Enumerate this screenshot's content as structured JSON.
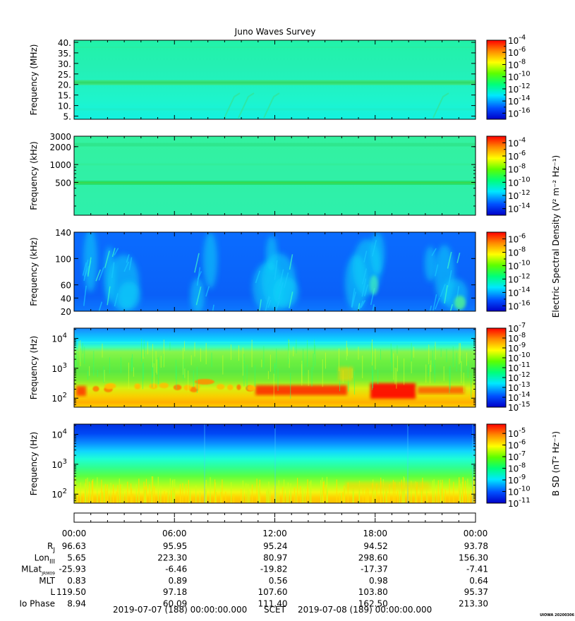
{
  "chart_data": {
    "type": "heatmap",
    "title": "Juno Waves Survey",
    "panels": [
      {
        "kind": "e1",
        "ylabel": "Frequency (MHz)",
        "ylim": [
          3.5,
          41
        ],
        "yscale": "linear",
        "yticks": [
          {
            "v": 40,
            "t": "40."
          },
          {
            "v": 35,
            "t": "35."
          },
          {
            "v": 30,
            "t": "30."
          },
          {
            "v": 25,
            "t": "25."
          },
          {
            "v": 20,
            "t": "20."
          },
          {
            "v": 15,
            "t": "15."
          },
          {
            "v": 10,
            "t": "10."
          },
          {
            "v": 5,
            "t": "5."
          }
        ],
        "colorbar": {
          "exp_ticks": [
            "-4",
            "-6",
            "-8",
            "-10",
            "-12",
            "-14",
            "-16"
          ],
          "range": [
            -17,
            -4
          ],
          "label": ""
        }
      },
      {
        "kind": "e2",
        "ylabel": "Frequency (kHz)",
        "ylim": [
          140,
          3000
        ],
        "yscale": "log",
        "yticks": [
          {
            "v": 3000,
            "t": "3000"
          },
          {
            "v": 2000,
            "t": "2000"
          },
          {
            "v": 1000,
            "t": "1000"
          },
          {
            "v": 500,
            "t": "500"
          }
        ],
        "colorbar": {
          "exp_ticks": [
            "-4",
            "-6",
            "-8",
            "-10",
            "-12",
            "-14"
          ],
          "range": [
            -15,
            -3
          ],
          "label": ""
        }
      },
      {
        "kind": "e3",
        "ylabel": "Frequency (kHz)",
        "ylim": [
          20,
          140
        ],
        "yscale": "linear",
        "yticks": [
          {
            "v": 140,
            "t": "140"
          },
          {
            "v": 100,
            "t": "100"
          },
          {
            "v": 60,
            "t": "60"
          },
          {
            "v": 40,
            "t": "40"
          },
          {
            "v": 20,
            "t": "20"
          }
        ],
        "colorbar": {
          "exp_ticks": [
            "-6",
            "-8",
            "-10",
            "-12",
            "-14",
            "-16"
          ],
          "range": [
            -16.8,
            -5
          ],
          "label": "Electric Spectral Density (V² m⁻² Hz⁻¹)"
        }
      },
      {
        "kind": "e4",
        "ylabel": "Frequency (Hz)",
        "ylim": [
          50,
          22000
        ],
        "yscale": "log",
        "yticks": [
          {
            "v": 10000,
            "t": "10",
            "e": "4"
          },
          {
            "v": 1000,
            "t": "10",
            "e": "3"
          },
          {
            "v": 100,
            "t": "10",
            "e": "2"
          }
        ],
        "colorbar": {
          "exp_ticks": [
            "-7",
            "-8",
            "-9",
            "-10",
            "-11",
            "-12",
            "-13",
            "-14",
            "-15"
          ],
          "range": [
            -15,
            -7
          ],
          "label": ""
        }
      },
      {
        "kind": "b",
        "ylabel": "Frequency (Hz)",
        "ylim": [
          50,
          22000
        ],
        "yscale": "log",
        "yticks": [
          {
            "v": 10000,
            "t": "10",
            "e": "4"
          },
          {
            "v": 1000,
            "t": "10",
            "e": "3"
          },
          {
            "v": 100,
            "t": "10",
            "e": "2"
          }
        ],
        "colorbar": {
          "exp_ticks": [
            "-5",
            "-6",
            "-7",
            "-8",
            "-9",
            "-10",
            "-11"
          ],
          "range": [
            -11,
            -4.2
          ],
          "label": "B SD (nT² Hz⁻¹)"
        }
      }
    ],
    "time_ticks": [
      "00:00",
      "06:00",
      "12:00",
      "18:00",
      "00:00"
    ],
    "ephemeris": [
      {
        "label": "R",
        "sub": "J",
        "values": [
          "96.63",
          "95.95",
          "95.24",
          "94.52",
          "93.78"
        ]
      },
      {
        "label": "Lon",
        "sub": "III",
        "values": [
          "5.65",
          "223.30",
          "80.97",
          "298.60",
          "156.30"
        ]
      },
      {
        "label": "MLat",
        "sub": "JRM09",
        "values": [
          "-25.93",
          "-6.46",
          "-19.82",
          "-17.37",
          "-7.41"
        ]
      },
      {
        "label": "MLT",
        "sub": "",
        "values": [
          "0.83",
          "0.89",
          "0.56",
          "0.98",
          "0.64"
        ]
      },
      {
        "label": "L",
        "sub": "",
        "values": [
          "119.50",
          "97.18",
          "107.60",
          "103.80",
          "95.37"
        ]
      },
      {
        "label": "Io Phase",
        "sub": "",
        "values": [
          "8.94",
          "60.09",
          "111.40",
          "162.50",
          "213.30"
        ]
      }
    ],
    "date_start": "2019-07-07 (188) 00:00:00.000",
    "time_label": "SCET",
    "date_end": "2019-07-08 (189) 00:00:00.000",
    "footer": "UIOWA 20200306"
  }
}
